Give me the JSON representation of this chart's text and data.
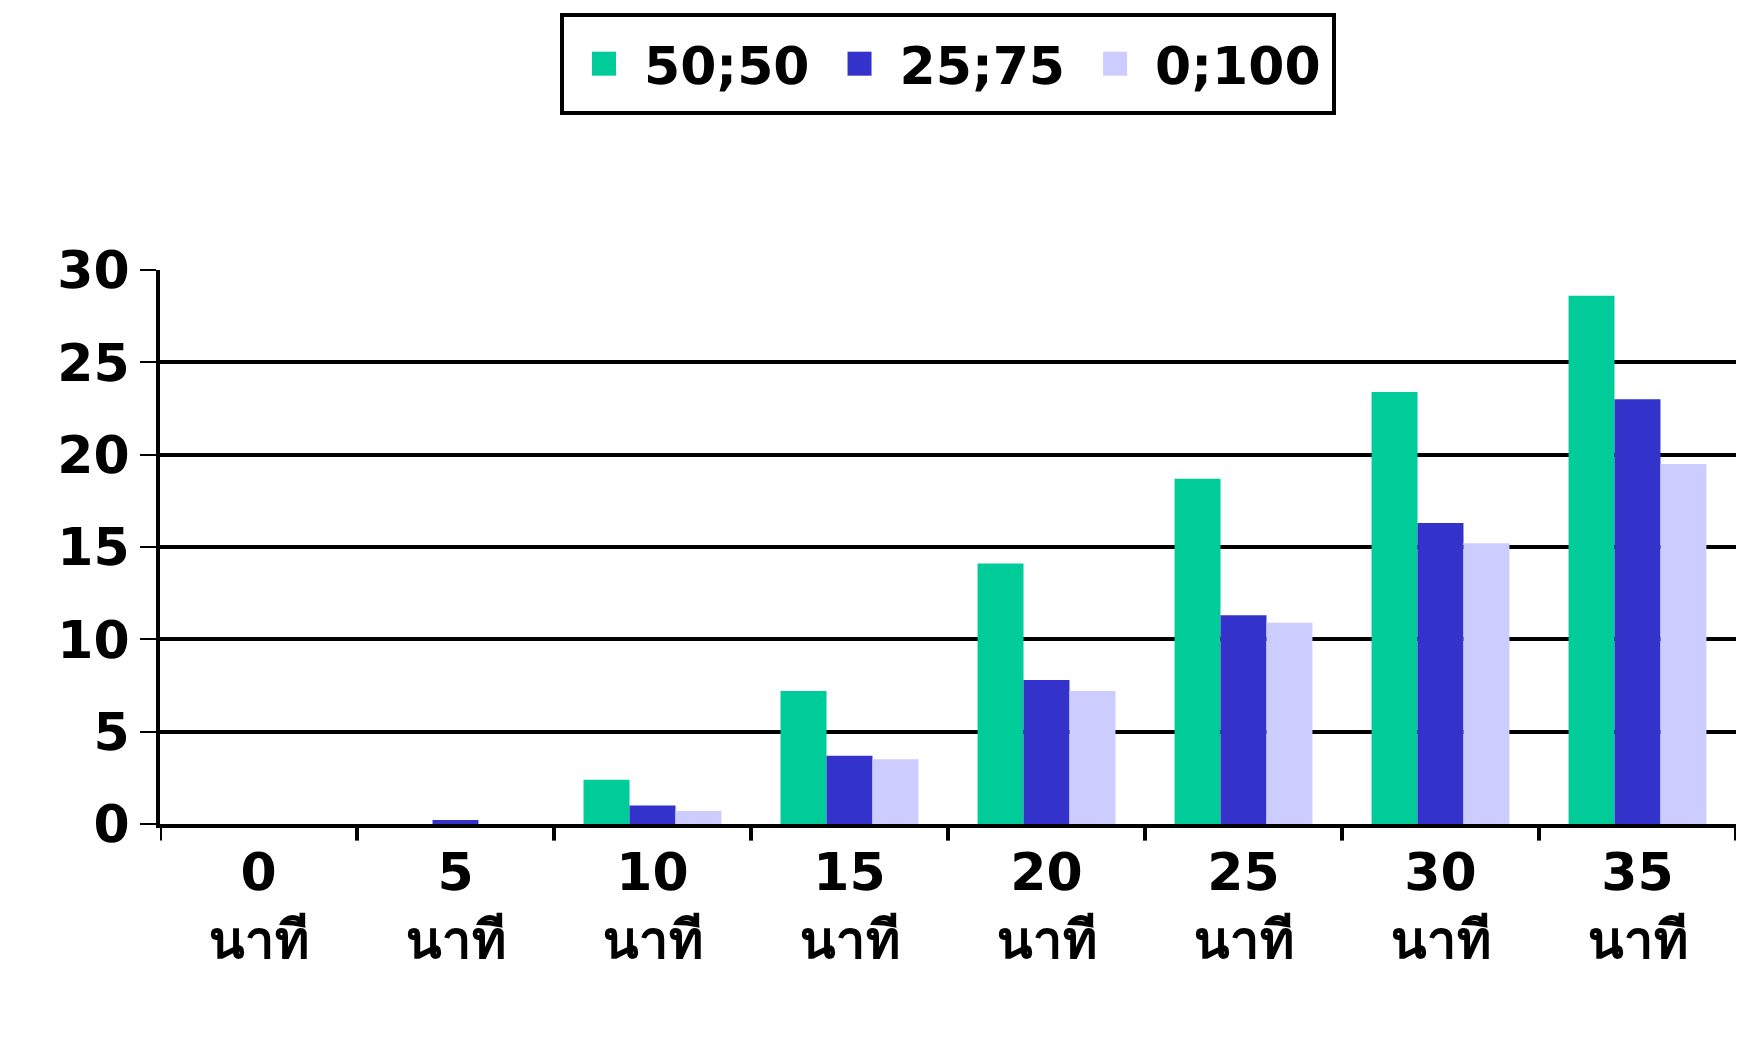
{
  "chart_data": {
    "type": "bar",
    "categories": [
      "0\nนาที",
      "5\nนาที",
      "10\nนาที",
      "15\nนาที",
      "20\nนาที",
      "25\nนาที",
      "30\nนาที",
      "35\nนาที"
    ],
    "series": [
      {
        "name": "50;50",
        "color": "#00cc99",
        "values": [
          0,
          0,
          2.4,
          7.2,
          14.1,
          18.7,
          23.4,
          28.6
        ]
      },
      {
        "name": "25;75",
        "color": "#3333cc",
        "values": [
          0,
          0.2,
          1.0,
          3.7,
          7.8,
          11.3,
          16.3,
          23.0
        ]
      },
      {
        "name": "0;100",
        "color": "#ccccff",
        "values": [
          0,
          0,
          0.7,
          3.5,
          7.2,
          10.9,
          15.2,
          19.5
        ]
      }
    ],
    "ylim": [
      0,
      30
    ],
    "yticks": [
      0,
      5,
      10,
      15,
      20,
      25,
      30
    ],
    "grid": "y",
    "legend": "top"
  }
}
